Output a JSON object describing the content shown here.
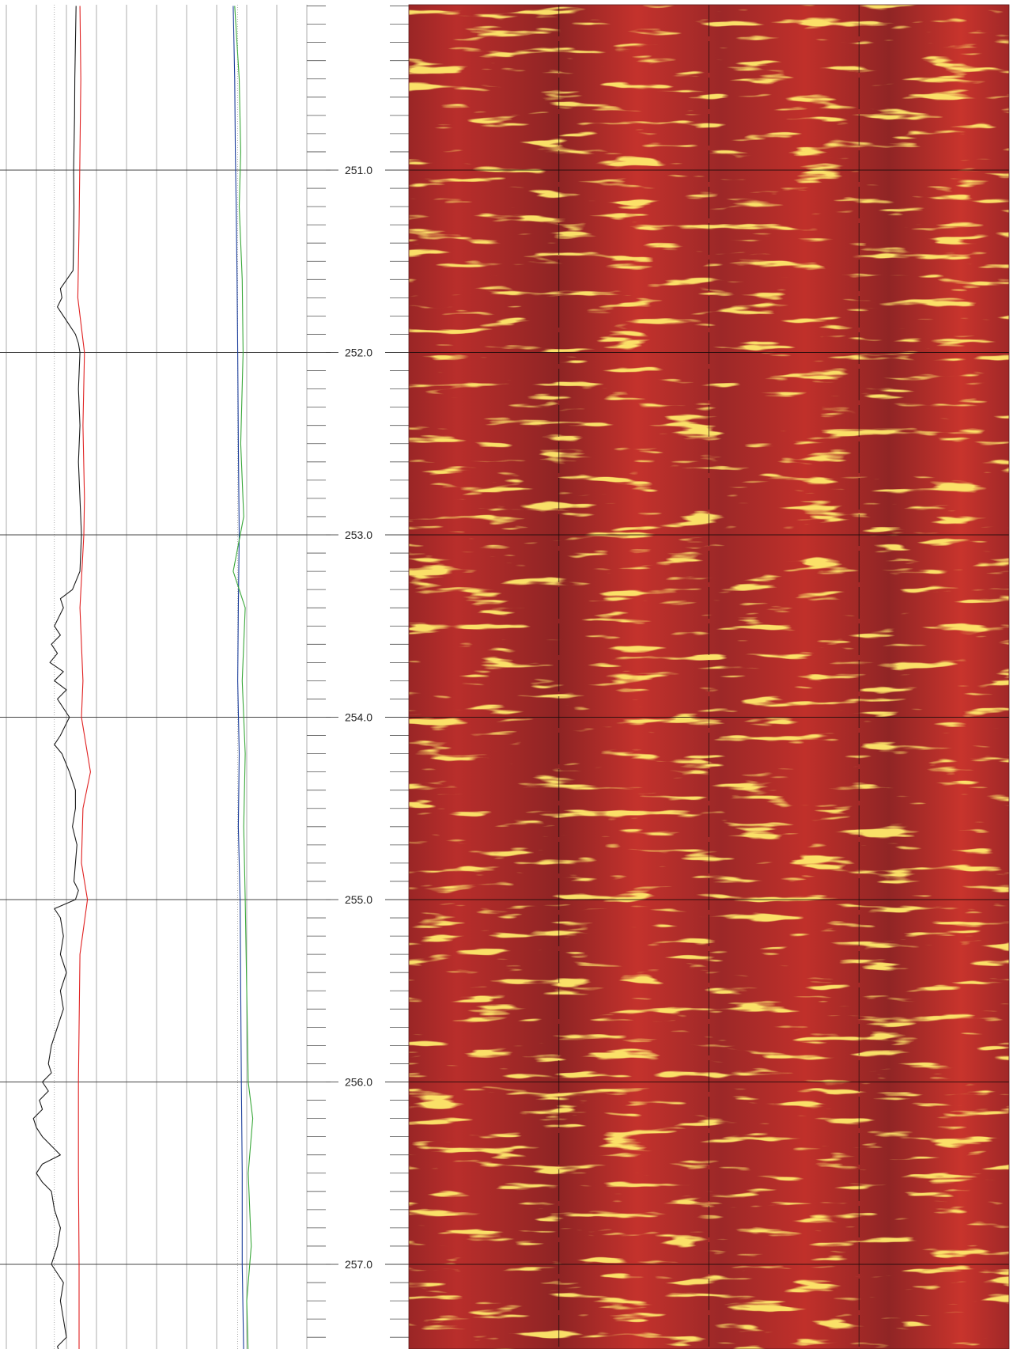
{
  "chart_data": {
    "type": "line",
    "title": "",
    "xlabel": "",
    "ylabel": "",
    "depth_range": [
      250.1,
      257.5
    ],
    "depth_ticks": [
      "251.0",
      "252.0",
      "253.0",
      "254.0",
      "255.0",
      "256.0",
      "257.0"
    ],
    "depth_tick_values": [
      251.0,
      252.0,
      253.0,
      254.0,
      255.0,
      256.0,
      257.0
    ],
    "minor_tick_step": 0.1,
    "curve_track": {
      "grid_columns": 10,
      "curves": [
        {
          "color": "#1a1a1a",
          "x_range": [
            0,
            10
          ],
          "points": [
            [
              250.1,
              2.32
            ],
            [
              250.3,
              2.3
            ],
            [
              250.5,
              2.28
            ],
            [
              250.7,
              2.27
            ],
            [
              250.9,
              2.25
            ],
            [
              251.0,
              2.24
            ],
            [
              251.2,
              2.25
            ],
            [
              251.4,
              2.24
            ],
            [
              251.55,
              2.22
            ],
            [
              251.65,
              1.8
            ],
            [
              251.7,
              1.85
            ],
            [
              251.75,
              1.7
            ],
            [
              251.8,
              1.9
            ],
            [
              251.85,
              2.1
            ],
            [
              251.9,
              2.3
            ],
            [
              251.95,
              2.4
            ],
            [
              252.0,
              2.45
            ],
            [
              252.2,
              2.4
            ],
            [
              252.4,
              2.45
            ],
            [
              252.6,
              2.4
            ],
            [
              252.8,
              2.45
            ],
            [
              253.0,
              2.5
            ],
            [
              253.2,
              2.45
            ],
            [
              253.3,
              2.2
            ],
            [
              253.35,
              1.8
            ],
            [
              253.4,
              1.9
            ],
            [
              253.5,
              1.6
            ],
            [
              253.55,
              1.8
            ],
            [
              253.6,
              1.5
            ],
            [
              253.65,
              1.7
            ],
            [
              253.7,
              1.45
            ],
            [
              253.75,
              1.9
            ],
            [
              253.8,
              1.6
            ],
            [
              253.85,
              2.0
            ],
            [
              253.9,
              1.7
            ],
            [
              253.95,
              1.9
            ],
            [
              254.0,
              2.1
            ],
            [
              254.1,
              1.8
            ],
            [
              254.15,
              1.6
            ],
            [
              254.2,
              1.85
            ],
            [
              254.3,
              2.1
            ],
            [
              254.4,
              2.3
            ],
            [
              254.5,
              2.3
            ],
            [
              254.6,
              2.2
            ],
            [
              254.7,
              2.35
            ],
            [
              254.8,
              2.3
            ],
            [
              254.9,
              2.25
            ],
            [
              254.95,
              2.4
            ],
            [
              255.0,
              2.3
            ],
            [
              255.05,
              1.6
            ],
            [
              255.1,
              1.8
            ],
            [
              255.2,
              1.9
            ],
            [
              255.3,
              1.8
            ],
            [
              255.4,
              2.0
            ],
            [
              255.5,
              1.8
            ],
            [
              255.6,
              1.9
            ],
            [
              255.7,
              1.7
            ],
            [
              255.8,
              1.5
            ],
            [
              255.9,
              1.4
            ],
            [
              255.95,
              1.5
            ],
            [
              256.0,
              1.2
            ],
            [
              256.05,
              1.4
            ],
            [
              256.1,
              1.1
            ],
            [
              256.15,
              1.2
            ],
            [
              256.2,
              0.9
            ],
            [
              256.25,
              1.0
            ],
            [
              256.3,
              1.2
            ],
            [
              256.4,
              1.8
            ],
            [
              256.45,
              1.2
            ],
            [
              256.5,
              1.0
            ],
            [
              256.55,
              1.2
            ],
            [
              256.6,
              1.5
            ],
            [
              256.7,
              1.6
            ],
            [
              256.8,
              1.8
            ],
            [
              256.9,
              1.7
            ],
            [
              257.0,
              1.5
            ],
            [
              257.05,
              1.7
            ],
            [
              257.1,
              1.9
            ],
            [
              257.2,
              1.8
            ],
            [
              257.3,
              1.9
            ],
            [
              257.4,
              2.0
            ],
            [
              257.45,
              1.7
            ],
            [
              257.5,
              1.8
            ]
          ]
        },
        {
          "color": "#e02020",
          "x_range": [
            0,
            10
          ],
          "points": [
            [
              250.1,
              2.45
            ],
            [
              250.5,
              2.48
            ],
            [
              250.9,
              2.45
            ],
            [
              251.3,
              2.42
            ],
            [
              251.7,
              2.38
            ],
            [
              252.0,
              2.6
            ],
            [
              252.4,
              2.55
            ],
            [
              252.8,
              2.6
            ],
            [
              253.0,
              2.58
            ],
            [
              253.4,
              2.45
            ],
            [
              253.8,
              2.55
            ],
            [
              254.0,
              2.5
            ],
            [
              254.3,
              2.8
            ],
            [
              254.5,
              2.55
            ],
            [
              254.8,
              2.5
            ],
            [
              255.0,
              2.7
            ],
            [
              255.3,
              2.45
            ],
            [
              255.7,
              2.42
            ],
            [
              256.0,
              2.4
            ],
            [
              256.5,
              2.4
            ],
            [
              257.0,
              2.42
            ],
            [
              257.5,
              2.42
            ]
          ]
        },
        {
          "color": "#1c3f9c",
          "x_range": [
            0,
            10
          ],
          "points": [
            [
              250.1,
              7.55
            ],
            [
              250.5,
              7.6
            ],
            [
              250.9,
              7.62
            ],
            [
              251.2,
              7.65
            ],
            [
              251.6,
              7.68
            ],
            [
              252.0,
              7.7
            ],
            [
              252.5,
              7.72
            ],
            [
              253.0,
              7.75
            ],
            [
              253.4,
              7.72
            ],
            [
              253.8,
              7.7
            ],
            [
              254.2,
              7.75
            ],
            [
              254.6,
              7.72
            ],
            [
              255.0,
              7.78
            ],
            [
              255.5,
              7.8
            ],
            [
              256.0,
              7.82
            ],
            [
              256.5,
              7.85
            ],
            [
              257.0,
              7.85
            ],
            [
              257.5,
              7.9
            ]
          ]
        },
        {
          "color": "#3aa83a",
          "x_range": [
            0,
            10
          ],
          "points": [
            [
              250.1,
              7.6
            ],
            [
              250.5,
              7.75
            ],
            [
              250.9,
              7.8
            ],
            [
              251.2,
              7.75
            ],
            [
              251.6,
              7.85
            ],
            [
              252.0,
              7.88
            ],
            [
              252.5,
              7.8
            ],
            [
              252.9,
              7.9
            ],
            [
              253.2,
              7.55
            ],
            [
              253.4,
              7.95
            ],
            [
              253.8,
              7.85
            ],
            [
              254.2,
              7.95
            ],
            [
              254.6,
              7.9
            ],
            [
              255.0,
              7.95
            ],
            [
              255.5,
              8.0
            ],
            [
              256.0,
              8.05
            ],
            [
              256.2,
              8.2
            ],
            [
              256.5,
              8.05
            ],
            [
              256.9,
              8.15
            ],
            [
              257.2,
              8.0
            ],
            [
              257.5,
              8.05
            ]
          ]
        }
      ]
    },
    "image_track": {
      "type": "heatmap",
      "palette": [
        "#8e2424",
        "#c0302a",
        "#d8502a",
        "#f0c030",
        "#ffe878"
      ],
      "azimuth_gridlines": 4
    }
  }
}
